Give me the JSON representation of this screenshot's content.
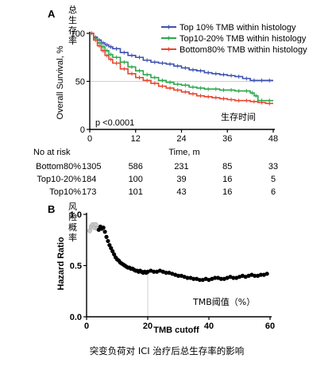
{
  "figure": {
    "caption": "突变负荷对 ICI 治疗后总生存率的影响"
  },
  "chart_data": [
    {
      "panel": "A",
      "type": "line",
      "side_label": "总生存率",
      "ylabel": "Overall Survival, %",
      "xlabel": "Time, m",
      "annotation_text": "生存时间",
      "pvalue_text": "p <0.0001",
      "xlim": [
        0,
        48
      ],
      "ylim": [
        0,
        100
      ],
      "xticks": [
        0,
        12,
        24,
        36,
        48
      ],
      "yticks": [
        0,
        50,
        100
      ],
      "reference_line_y": 50,
      "legend_position": "top-right",
      "series": [
        {
          "name": "Top 10% TMB within histology",
          "color": "#3d50b0",
          "x": [
            0,
            1,
            2,
            3,
            4,
            5,
            6,
            8,
            10,
            12,
            14,
            16,
            18,
            20,
            22,
            24,
            26,
            28,
            30,
            32,
            34,
            36,
            38,
            40,
            42,
            44,
            46,
            48
          ],
          "y": [
            100,
            96,
            93,
            90,
            88,
            86,
            84,
            80,
            77,
            75,
            72,
            70,
            69,
            68,
            66,
            64,
            62,
            61,
            59,
            58,
            57,
            56,
            55,
            53,
            51,
            51,
            51,
            51
          ]
        },
        {
          "name": "Top10-20% TMB within histology",
          "color": "#2aa84a",
          "x": [
            0,
            1,
            2,
            3,
            4,
            5,
            6,
            8,
            10,
            12,
            14,
            16,
            18,
            20,
            22,
            24,
            26,
            28,
            30,
            32,
            34,
            36,
            38,
            40,
            42,
            43,
            44,
            46,
            48
          ],
          "y": [
            100,
            95,
            90,
            86,
            82,
            78,
            75,
            70,
            65,
            61,
            57,
            54,
            51,
            49,
            47,
            46,
            44,
            43,
            42,
            42,
            41,
            41,
            40,
            40,
            38,
            35,
            30,
            30,
            30
          ]
        },
        {
          "name": "Bottom80% TMB within histology",
          "color": "#e8442e",
          "x": [
            0,
            1,
            2,
            3,
            4,
            5,
            6,
            8,
            10,
            12,
            14,
            16,
            18,
            20,
            22,
            24,
            26,
            28,
            30,
            32,
            34,
            36,
            38,
            40,
            42,
            44,
            46,
            48
          ],
          "y": [
            100,
            93,
            87,
            82,
            77,
            73,
            69,
            63,
            58,
            54,
            51,
            48,
            45,
            43,
            41,
            39,
            37,
            35,
            34,
            33,
            32,
            31,
            30,
            30,
            29,
            28,
            27,
            27
          ]
        }
      ],
      "risk_table": {
        "title": "No at risk",
        "times": [
          0,
          12,
          24,
          36,
          48
        ],
        "rows": [
          {
            "label": "Bottom80%",
            "values": [
              "1305",
              "586",
              "231",
              "85",
              "33"
            ]
          },
          {
            "label": "Top10-20%",
            "values": [
              "184",
              "100",
              "39",
              "16",
              "5"
            ]
          },
          {
            "label": "Top10%",
            "values": [
              "173",
              "101",
              "43",
              "16",
              "6"
            ]
          }
        ]
      }
    },
    {
      "panel": "B",
      "type": "scatter",
      "side_label": "风险概率",
      "ylabel": "Hazard Ratio",
      "xlabel": "TMB cutoff",
      "annotation_text": "TMB阈值（%）",
      "xlim": [
        0,
        60
      ],
      "ylim": [
        0,
        1.0
      ],
      "xticks": [
        0,
        20,
        40,
        60
      ],
      "yticks": [
        0.0,
        0.5,
        1.0
      ],
      "ytick_labels": [
        "0.0",
        "0.5",
        "1.0"
      ],
      "reference_line_x": 20,
      "series": [
        {
          "name": "",
          "color": "#000000",
          "x_faded": [
            1,
            1.5,
            2,
            2.5,
            3,
            3.5
          ],
          "y_faded": [
            0.84,
            0.88,
            0.9,
            0.87,
            0.9,
            0.86
          ],
          "x": [
            4,
            4.5,
            5,
            5.5,
            6,
            6.5,
            7,
            7.5,
            8,
            8.5,
            9,
            9.5,
            10,
            10.5,
            11,
            11.5,
            12,
            12.5,
            13,
            13.5,
            14,
            14.5,
            15,
            15.5,
            16,
            16.5,
            17,
            17.5,
            18,
            18.5,
            19,
            19.5,
            20,
            21,
            22,
            23,
            24,
            25,
            26,
            27,
            28,
            29,
            30,
            31,
            32,
            33,
            34,
            35,
            36,
            37,
            38,
            39,
            40,
            41,
            42,
            43,
            44,
            45,
            46,
            47,
            48,
            49,
            50,
            51,
            52,
            53,
            54,
            55,
            56,
            57,
            58,
            59
          ],
          "y": [
            0.85,
            0.88,
            0.86,
            0.87,
            0.83,
            0.78,
            0.74,
            0.7,
            0.67,
            0.64,
            0.61,
            0.58,
            0.56,
            0.55,
            0.53,
            0.52,
            0.51,
            0.5,
            0.49,
            0.48,
            0.48,
            0.47,
            0.47,
            0.46,
            0.45,
            0.45,
            0.44,
            0.45,
            0.44,
            0.43,
            0.44,
            0.43,
            0.44,
            0.45,
            0.44,
            0.44,
            0.45,
            0.44,
            0.43,
            0.43,
            0.42,
            0.41,
            0.4,
            0.4,
            0.39,
            0.38,
            0.38,
            0.37,
            0.37,
            0.36,
            0.36,
            0.37,
            0.36,
            0.37,
            0.38,
            0.38,
            0.37,
            0.37,
            0.38,
            0.39,
            0.38,
            0.38,
            0.39,
            0.4,
            0.39,
            0.4,
            0.41,
            0.4,
            0.4,
            0.41,
            0.41,
            0.42
          ]
        }
      ]
    }
  ]
}
